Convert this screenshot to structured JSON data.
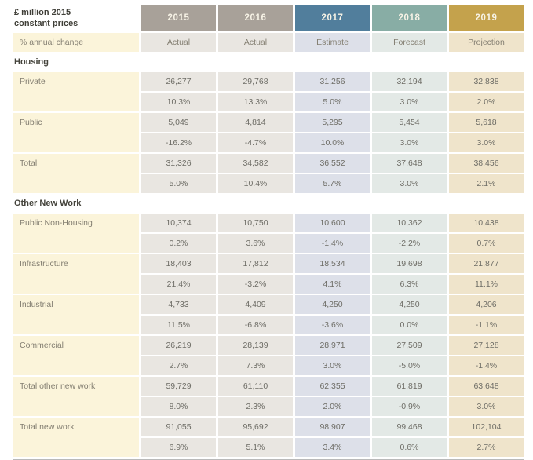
{
  "colors": {
    "background": "#ffffff",
    "label_bg": "#fbf4da",
    "title_text": "#3f3e37",
    "label_text": "#847f72",
    "cell_text": "#6e6d66",
    "header_text": "#f7f3e6",
    "section_text": "#45443c",
    "rule": "#b9b9b9"
  },
  "table": {
    "title_line1": "£ million 2015",
    "title_line2": "constant prices",
    "change_label": "% annual change",
    "columns": [
      {
        "year": "2015",
        "type": "Actual",
        "header_bg": "#a8a199",
        "cell_bg": "#e9e6e1"
      },
      {
        "year": "2016",
        "type": "Actual",
        "header_bg": "#a8a199",
        "cell_bg": "#e9e6e1"
      },
      {
        "year": "2017",
        "type": "Estimate",
        "header_bg": "#517e9c",
        "cell_bg": "#dde0e9"
      },
      {
        "year": "2018",
        "type": "Forecast",
        "header_bg": "#88ada5",
        "cell_bg": "#e3e9e6"
      },
      {
        "year": "2019",
        "type": "Projection",
        "header_bg": "#c4a24c",
        "cell_bg": "#efe4cb"
      }
    ],
    "sections": [
      {
        "title": "Housing",
        "rows": [
          {
            "label": "Private",
            "values": [
              "26,277",
              "29,768",
              "31,256",
              "32,194",
              "32,838"
            ],
            "changes": [
              "10.3%",
              "13.3%",
              "5.0%",
              "3.0%",
              "2.0%"
            ]
          },
          {
            "label": "Public",
            "values": [
              "5,049",
              "4,814",
              "5,295",
              "5,454",
              "5,618"
            ],
            "changes": [
              "-16.2%",
              "-4.7%",
              "10.0%",
              "3.0%",
              "3.0%"
            ]
          },
          {
            "label": "Total",
            "values": [
              "31,326",
              "34,582",
              "36,552",
              "37,648",
              "38,456"
            ],
            "changes": [
              "5.0%",
              "10.4%",
              "5.7%",
              "3.0%",
              "2.1%"
            ]
          }
        ]
      },
      {
        "title": "Other New Work",
        "rows": [
          {
            "label": "Public Non-Housing",
            "values": [
              "10,374",
              "10,750",
              "10,600",
              "10,362",
              "10,438"
            ],
            "changes": [
              "0.2%",
              "3.6%",
              "-1.4%",
              "-2.2%",
              "0.7%"
            ]
          },
          {
            "label": "Infrastructure",
            "values": [
              "18,403",
              "17,812",
              "18,534",
              "19,698",
              "21,877"
            ],
            "changes": [
              "21.4%",
              "-3.2%",
              "4.1%",
              "6.3%",
              "11.1%"
            ]
          },
          {
            "label": "Industrial",
            "values": [
              "4,733",
              "4,409",
              "4,250",
              "4,250",
              "4,206"
            ],
            "changes": [
              "11.5%",
              "-6.8%",
              "-3.6%",
              "0.0%",
              "-1.1%"
            ]
          },
          {
            "label": "Commercial",
            "values": [
              "26,219",
              "28,139",
              "28,971",
              "27,509",
              "27,128"
            ],
            "changes": [
              "2.7%",
              "7.3%",
              "3.0%",
              "-5.0%",
              "-1.4%"
            ]
          },
          {
            "label": "Total other new work",
            "values": [
              "59,729",
              "61,110",
              "62,355",
              "61,819",
              "63,648"
            ],
            "changes": [
              "8.0%",
              "2.3%",
              "2.0%",
              "-0.9%",
              "3.0%"
            ]
          },
          {
            "label": "Total new work",
            "values": [
              "91,055",
              "95,692",
              "98,907",
              "99,468",
              "102,104"
            ],
            "changes": [
              "6.9%",
              "5.1%",
              "3.4%",
              "0.6%",
              "2.7%"
            ]
          }
        ]
      }
    ]
  },
  "chart_data": {
    "type": "table",
    "title": "£ million 2015 constant prices",
    "columns": [
      "2015 (Actual)",
      "2016 (Actual)",
      "2017 (Estimate)",
      "2018 (Forecast)",
      "2019 (Projection)"
    ],
    "row_pairs_note": "each row has absolute values (£m) and % annual change",
    "sections": [
      {
        "name": "Housing",
        "rows": [
          {
            "label": "Private",
            "values": [
              26277,
              29768,
              31256,
              32194,
              32838
            ],
            "pct_change": [
              10.3,
              13.3,
              5.0,
              3.0,
              2.0
            ]
          },
          {
            "label": "Public",
            "values": [
              5049,
              4814,
              5295,
              5454,
              5618
            ],
            "pct_change": [
              -16.2,
              -4.7,
              10.0,
              3.0,
              3.0
            ]
          },
          {
            "label": "Total",
            "values": [
              31326,
              34582,
              36552,
              37648,
              38456
            ],
            "pct_change": [
              5.0,
              10.4,
              5.7,
              3.0,
              2.1
            ]
          }
        ]
      },
      {
        "name": "Other New Work",
        "rows": [
          {
            "label": "Public Non-Housing",
            "values": [
              10374,
              10750,
              10600,
              10362,
              10438
            ],
            "pct_change": [
              0.2,
              3.6,
              -1.4,
              -2.2,
              0.7
            ]
          },
          {
            "label": "Infrastructure",
            "values": [
              18403,
              17812,
              18534,
              19698,
              21877
            ],
            "pct_change": [
              21.4,
              -3.2,
              4.1,
              6.3,
              11.1
            ]
          },
          {
            "label": "Industrial",
            "values": [
              4733,
              4409,
              4250,
              4250,
              4206
            ],
            "pct_change": [
              11.5,
              -6.8,
              -3.6,
              0.0,
              -1.1
            ]
          },
          {
            "label": "Commercial",
            "values": [
              26219,
              28139,
              28971,
              27509,
              27128
            ],
            "pct_change": [
              2.7,
              7.3,
              3.0,
              -5.0,
              -1.4
            ]
          },
          {
            "label": "Total other new work",
            "values": [
              59729,
              61110,
              62355,
              61819,
              63648
            ],
            "pct_change": [
              8.0,
              2.3,
              2.0,
              -0.9,
              3.0
            ]
          },
          {
            "label": "Total new work",
            "values": [
              91055,
              95692,
              98907,
              99468,
              102104
            ],
            "pct_change": [
              6.9,
              5.1,
              3.4,
              0.6,
              2.7
            ]
          }
        ]
      }
    ]
  }
}
